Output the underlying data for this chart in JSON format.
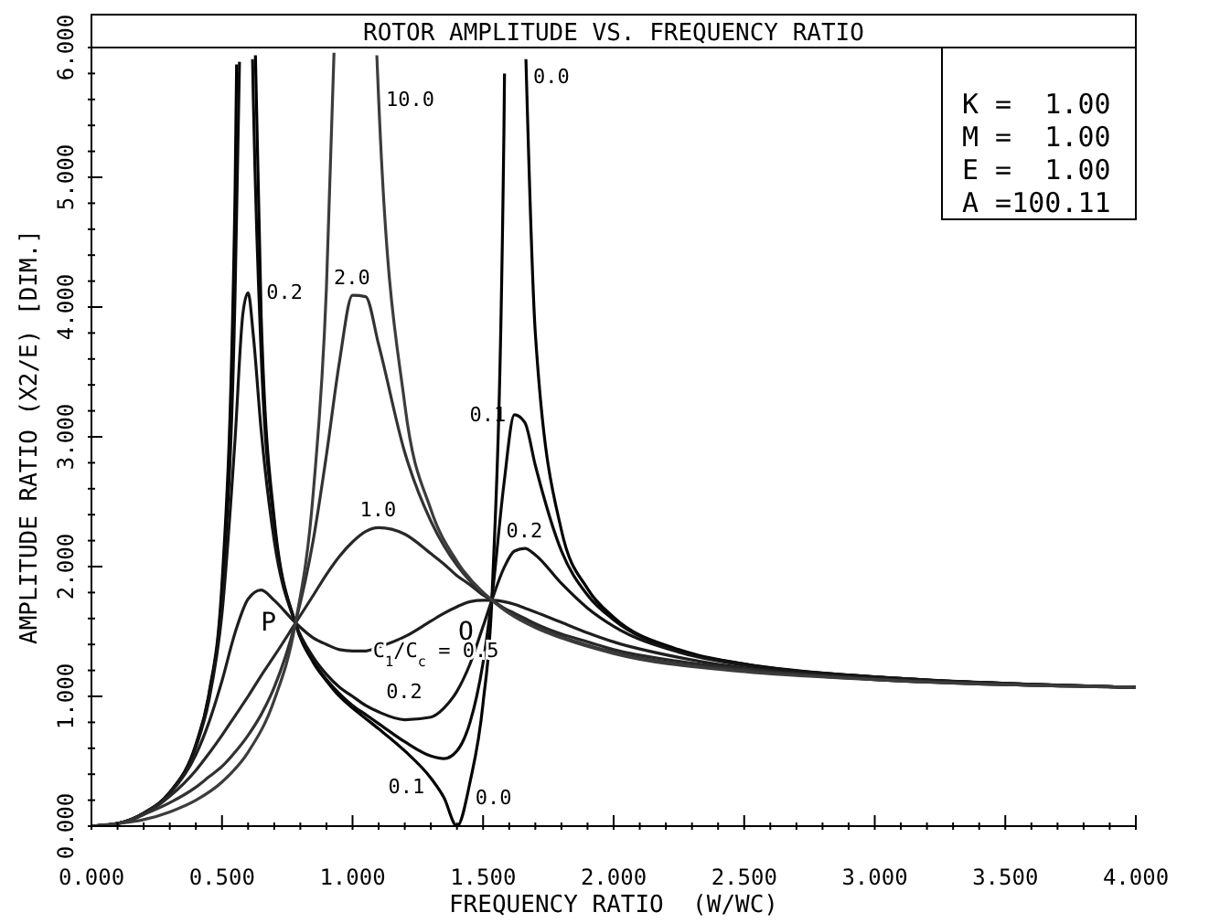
{
  "chart_data": {
    "type": "line",
    "title": "ROTOR AMPLITUDE VS. FREQUENCY RATIO",
    "xlabel": "FREQUENCY RATIO  (W/WC)",
    "ylabel": "AMPLITUDE RATIO (X2/E) [DIM.]",
    "xlim": [
      0,
      4
    ],
    "ylim": [
      0,
      6
    ],
    "xticks": [
      {
        "value": 0,
        "label": "0.000"
      },
      {
        "value": 0.1,
        "label": null
      },
      {
        "value": 0.2,
        "label": null
      },
      {
        "value": 0.3,
        "label": null
      },
      {
        "value": 0.4,
        "label": null
      },
      {
        "value": 0.5,
        "label": "0.500"
      },
      {
        "value": 0.6,
        "label": null
      },
      {
        "value": 0.7,
        "label": null
      },
      {
        "value": 0.8,
        "label": null
      },
      {
        "value": 0.9,
        "label": null
      },
      {
        "value": 1,
        "label": "1.000"
      },
      {
        "value": 1.1,
        "label": null
      },
      {
        "value": 1.2,
        "label": null
      },
      {
        "value": 1.3,
        "label": null
      },
      {
        "value": 1.4,
        "label": null
      },
      {
        "value": 1.5,
        "label": "1.500"
      },
      {
        "value": 1.6,
        "label": null
      },
      {
        "value": 1.7,
        "label": null
      },
      {
        "value": 1.8,
        "label": null
      },
      {
        "value": 1.9,
        "label": null
      },
      {
        "value": 2,
        "label": "2.000"
      },
      {
        "value": 2.1,
        "label": null
      },
      {
        "value": 2.2,
        "label": null
      },
      {
        "value": 2.3,
        "label": null
      },
      {
        "value": 2.4,
        "label": null
      },
      {
        "value": 2.5,
        "label": "2.500"
      },
      {
        "value": 2.6,
        "label": null
      },
      {
        "value": 2.7,
        "label": null
      },
      {
        "value": 2.8,
        "label": null
      },
      {
        "value": 2.9,
        "label": null
      },
      {
        "value": 3,
        "label": "3.000"
      },
      {
        "value": 3.1,
        "label": null
      },
      {
        "value": 3.2,
        "label": null
      },
      {
        "value": 3.3,
        "label": null
      },
      {
        "value": 3.4,
        "label": null
      },
      {
        "value": 3.5,
        "label": "3.500"
      },
      {
        "value": 3.6,
        "label": null
      },
      {
        "value": 3.7,
        "label": null
      },
      {
        "value": 3.8,
        "label": null
      },
      {
        "value": 3.9,
        "label": null
      },
      {
        "value": 4,
        "label": "4.000"
      }
    ],
    "yticks": [
      {
        "value": 0,
        "label": "0.000"
      },
      {
        "value": 0.2,
        "label": null
      },
      {
        "value": 0.4,
        "label": null
      },
      {
        "value": 0.6,
        "label": null
      },
      {
        "value": 0.8,
        "label": null
      },
      {
        "value": 1,
        "label": "1.000"
      },
      {
        "value": 1.2,
        "label": null
      },
      {
        "value": 1.4,
        "label": null
      },
      {
        "value": 1.6,
        "label": null
      },
      {
        "value": 1.8,
        "label": null
      },
      {
        "value": 2,
        "label": "2.000"
      },
      {
        "value": 2.2,
        "label": null
      },
      {
        "value": 2.4,
        "label": null
      },
      {
        "value": 2.6,
        "label": null
      },
      {
        "value": 2.8,
        "label": null
      },
      {
        "value": 3,
        "label": "3.000"
      },
      {
        "value": 3.2,
        "label": null
      },
      {
        "value": 3.4,
        "label": null
      },
      {
        "value": 3.6,
        "label": null
      },
      {
        "value": 3.8,
        "label": null
      },
      {
        "value": 4,
        "label": "4.000"
      },
      {
        "value": 4.2,
        "label": null
      },
      {
        "value": 4.4,
        "label": null
      },
      {
        "value": 4.6,
        "label": null
      },
      {
        "value": 4.8,
        "label": null
      },
      {
        "value": 5,
        "label": "5.000"
      },
      {
        "value": 5.2,
        "label": null
      },
      {
        "value": 5.4,
        "label": null
      },
      {
        "value": 5.6,
        "label": null
      },
      {
        "value": 5.8,
        "label": null
      },
      {
        "value": 6,
        "label": "6.000"
      }
    ],
    "marker": "none",
    "line_style": "solid",
    "series": [
      {
        "color": "#000000",
        "x": [
          0,
          0.1,
          0.2,
          0.3,
          0.4,
          0.45,
          0.5,
          0.55,
          0.556,
          0.59,
          0.628,
          0.65,
          0.7,
          0.78,
          0.85,
          0.9,
          0.95,
          1.0,
          1.05,
          1.1,
          1.2,
          1.3,
          1.35,
          1.4,
          1.45,
          1.5,
          1.535,
          1.58,
          1.582,
          1.62,
          1.664,
          1.7,
          1.8,
          1.9,
          2.0,
          2.25,
          2.5,
          3.0,
          3.5,
          4.0
        ],
        "values": [
          0,
          0.02,
          0.1,
          0.26,
          0.63,
          1.02,
          1.87,
          4.88,
          5.87,
          null,
          5.94,
          3.93,
          2.37,
          1.57,
          1.26,
          1.12,
          1.0,
          0.91,
          0.83,
          0.75,
          0.58,
          0.37,
          0.22,
          0,
          0.34,
          0.95,
          1.81,
          5.39,
          5.8,
          null,
          5.91,
          3.8,
          2.28,
          1.83,
          1.61,
          1.36,
          1.25,
          1.15,
          1.1,
          1.07
        ]
      },
      {
        "color": "#0a0a0a",
        "x": [
          0,
          0.1,
          0.2,
          0.3,
          0.4,
          0.45,
          0.5,
          0.55,
          0.567,
          0.59,
          0.617,
          0.62,
          0.65,
          0.7,
          0.78,
          0.85,
          0.9,
          0.95,
          1.0,
          1.05,
          1.1,
          1.2,
          1.3,
          1.35,
          1.4,
          1.45,
          1.5,
          1.535,
          1.58,
          1.62,
          1.66,
          1.7,
          1.8,
          1.9,
          2.0,
          2.25,
          2.5,
          3.0,
          3.5,
          4.0
        ],
        "values": [
          0,
          0.02,
          0.1,
          0.26,
          0.62,
          1.01,
          1.8,
          4.09,
          5.89,
          null,
          5.91,
          5.6,
          3.64,
          2.33,
          1.57,
          1.27,
          1.13,
          1.02,
          0.93,
          0.86,
          0.79,
          0.65,
          0.54,
          0.52,
          0.58,
          0.8,
          1.26,
          1.78,
          2.64,
          3.17,
          3.11,
          2.78,
          2.12,
          1.78,
          1.59,
          1.35,
          1.25,
          1.15,
          1.1,
          1.07
        ]
      },
      {
        "color": "#141414",
        "x": [
          0,
          0.1,
          0.2,
          0.3,
          0.4,
          0.45,
          0.5,
          0.55,
          0.58,
          0.6,
          0.62,
          0.65,
          0.7,
          0.78,
          0.85,
          0.9,
          0.95,
          1.0,
          1.05,
          1.1,
          1.2,
          1.3,
          1.35,
          1.4,
          1.45,
          1.5,
          1.535,
          1.58,
          1.62,
          1.66,
          1.7,
          1.8,
          1.9,
          2.0,
          2.25,
          2.5,
          3.0,
          3.5,
          4.0
        ],
        "values": [
          0,
          0.02,
          0.1,
          0.26,
          0.61,
          0.97,
          1.64,
          2.98,
          3.95,
          4.11,
          3.78,
          3.05,
          2.2,
          1.57,
          1.3,
          1.17,
          1.07,
          1.0,
          0.93,
          0.88,
          0.82,
          0.84,
          0.91,
          1.04,
          1.25,
          1.54,
          1.75,
          1.99,
          2.12,
          2.14,
          2.09,
          1.87,
          1.68,
          1.54,
          1.34,
          1.24,
          1.15,
          1.1,
          1.07
        ]
      },
      {
        "color": "#1e1e1e",
        "x": [
          0,
          0.1,
          0.2,
          0.3,
          0.4,
          0.45,
          0.5,
          0.55,
          0.6,
          0.65,
          0.7,
          0.78,
          0.85,
          0.9,
          0.95,
          1.0,
          1.05,
          1.1,
          1.2,
          1.3,
          1.35,
          1.4,
          1.45,
          1.5,
          1.535,
          1.58,
          1.62,
          1.66,
          1.7,
          1.8,
          1.9,
          2.0,
          2.25,
          2.5,
          3.0,
          3.5,
          4.0
        ],
        "values": [
          0,
          0.02,
          0.1,
          0.25,
          0.55,
          0.8,
          1.12,
          1.49,
          1.75,
          1.82,
          1.74,
          1.57,
          1.45,
          1.4,
          1.36,
          1.35,
          1.35,
          1.38,
          1.46,
          1.58,
          1.64,
          1.69,
          1.73,
          1.74,
          1.74,
          1.73,
          1.71,
          1.68,
          1.65,
          1.57,
          1.49,
          1.42,
          1.3,
          1.22,
          1.14,
          1.1,
          1.07
        ]
      },
      {
        "color": "#282828",
        "x": [
          0,
          0.1,
          0.2,
          0.3,
          0.4,
          0.45,
          0.5,
          0.55,
          0.6,
          0.65,
          0.7,
          0.78,
          0.85,
          0.9,
          0.95,
          1.0,
          1.05,
          1.1,
          1.2,
          1.3,
          1.35,
          1.4,
          1.45,
          1.5,
          1.535,
          1.58,
          1.62,
          1.66,
          1.7,
          1.8,
          1.9,
          2.0,
          2.25,
          2.5,
          3.0,
          3.5,
          4.0
        ],
        "values": [
          0,
          0.02,
          0.09,
          0.23,
          0.43,
          0.56,
          0.7,
          0.85,
          1.0,
          1.16,
          1.31,
          1.56,
          1.78,
          1.94,
          2.08,
          2.19,
          2.27,
          2.3,
          2.25,
          2.1,
          2.02,
          1.93,
          1.86,
          1.78,
          1.74,
          1.68,
          1.64,
          1.6,
          1.56,
          1.48,
          1.42,
          1.36,
          1.27,
          1.21,
          1.13,
          1.09,
          1.07
        ]
      },
      {
        "color": "#323232",
        "x": [
          0,
          0.1,
          0.2,
          0.3,
          0.4,
          0.45,
          0.5,
          0.55,
          0.6,
          0.65,
          0.7,
          0.78,
          0.85,
          0.9,
          0.95,
          1.0,
          1.05,
          1.1,
          1.2,
          1.3,
          1.35,
          1.4,
          1.45,
          1.5,
          1.535,
          1.58,
          1.62,
          1.7,
          1.8,
          2.0,
          2.25,
          2.5,
          3.0,
          3.5,
          4.0
        ],
        "values": [
          0,
          0.02,
          0.09,
          0.18,
          0.3,
          0.38,
          0.46,
          0.57,
          0.7,
          0.86,
          1.07,
          1.56,
          2.21,
          2.86,
          3.58,
          4.09,
          4.08,
          3.71,
          2.88,
          2.35,
          2.16,
          2.01,
          1.89,
          1.8,
          1.74,
          1.67,
          1.62,
          1.54,
          1.46,
          1.34,
          1.25,
          1.2,
          1.13,
          1.09,
          1.07
        ]
      },
      {
        "color": "#3c3c3c",
        "x": [
          0,
          0.1,
          0.2,
          0.3,
          0.4,
          0.5,
          0.6,
          0.7,
          0.78,
          0.85,
          0.9,
          0.929,
          1.0,
          1.093,
          1.1,
          1.2,
          1.3,
          1.4,
          1.5,
          1.535,
          1.6,
          1.7,
          1.8,
          2.0,
          2.5,
          3.0,
          3.5,
          4.0
        ],
        "values": [
          0,
          0.02,
          0.05,
          0.11,
          0.2,
          0.34,
          0.57,
          0.97,
          1.55,
          2.58,
          4.15,
          5.96,
          null,
          5.94,
          5.6,
          3.25,
          2.44,
          2.04,
          1.8,
          1.74,
          1.64,
          1.53,
          1.45,
          1.33,
          1.19,
          1.13,
          1.09,
          1.07
        ]
      }
    ],
    "annotations": [
      {
        "text": "0.0",
        "x": 1.664,
        "y": 5.91
      },
      {
        "text": "10.0",
        "x": 1.1,
        "y": 5.6
      },
      {
        "text": "2.0",
        "x": 1.0,
        "y": 4.09
      },
      {
        "text": "0.2",
        "x": 0.6,
        "y": 4.11
      },
      {
        "text": "0.1",
        "x": 1.62,
        "y": 3.17
      },
      {
        "text": "1.0",
        "x": 1.1,
        "y": 2.3
      },
      {
        "text": "0.2",
        "x": 1.66,
        "y": 2.14
      },
      {
        "text": "P",
        "x": 0.78,
        "y": 1.57
      },
      {
        "text": "Q",
        "x": 1.535,
        "y": 1.74
      },
      {
        "text": "C$_{1}$/C$_{c}$ = 0.5",
        "x": 1.05,
        "y": 1.35
      },
      {
        "text": "0.2",
        "x": 1.2,
        "y": 0.82
      },
      {
        "text": "0.1",
        "x": 1.35,
        "y": 0.52
      },
      {
        "text": "0.0",
        "x": 1.4,
        "y": 0
      },
      "K =  1.00",
      "M =  1.00",
      "E =  1.00",
      "A =100.11"
    ]
  }
}
